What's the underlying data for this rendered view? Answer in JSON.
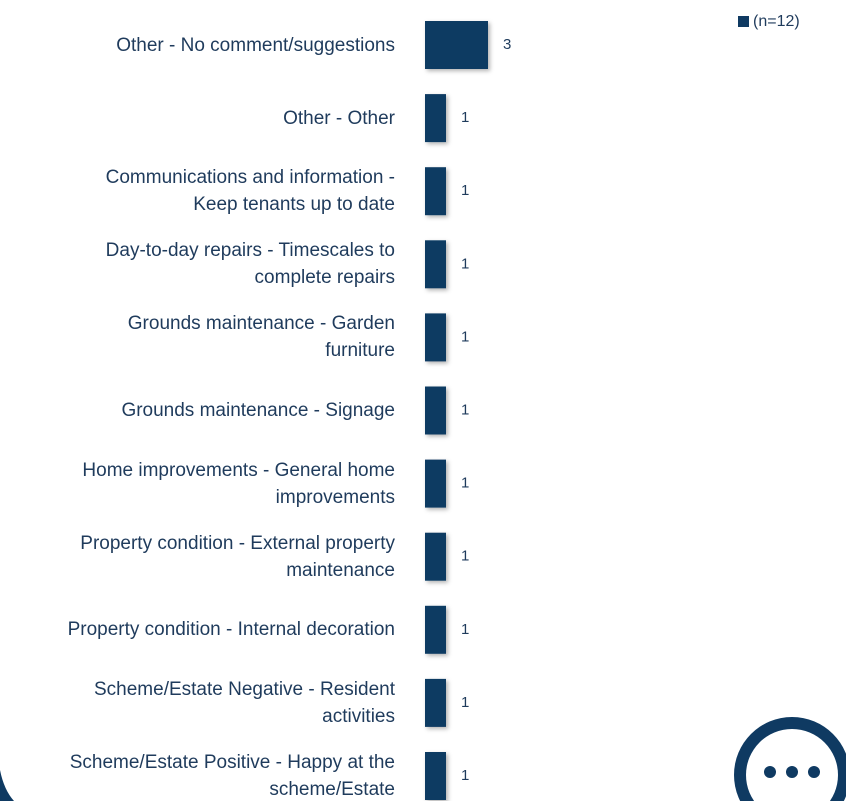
{
  "chart_data": {
    "type": "bar",
    "orientation": "horizontal",
    "categories": [
      "Other - No comment/suggestions",
      "Other - Other",
      "Communications and information - Keep tenants up to date",
      "Day-to-day repairs - Timescales to complete repairs",
      "Grounds maintenance - Garden furniture",
      "Grounds maintenance - Signage",
      "Home improvements - General home improvements",
      "Property condition - External property maintenance",
      "Property condition - Internal decoration",
      "Scheme/Estate Negative - Resident activities",
      "Scheme/Estate Positive - Happy at the scheme/Estate"
    ],
    "series": [
      {
        "name": "(n=12)",
        "color": "#0f3a62",
        "values": [
          3,
          1,
          1,
          1,
          1,
          1,
          1,
          1,
          1,
          1,
          1
        ]
      }
    ],
    "legend": "top-right"
  }
}
